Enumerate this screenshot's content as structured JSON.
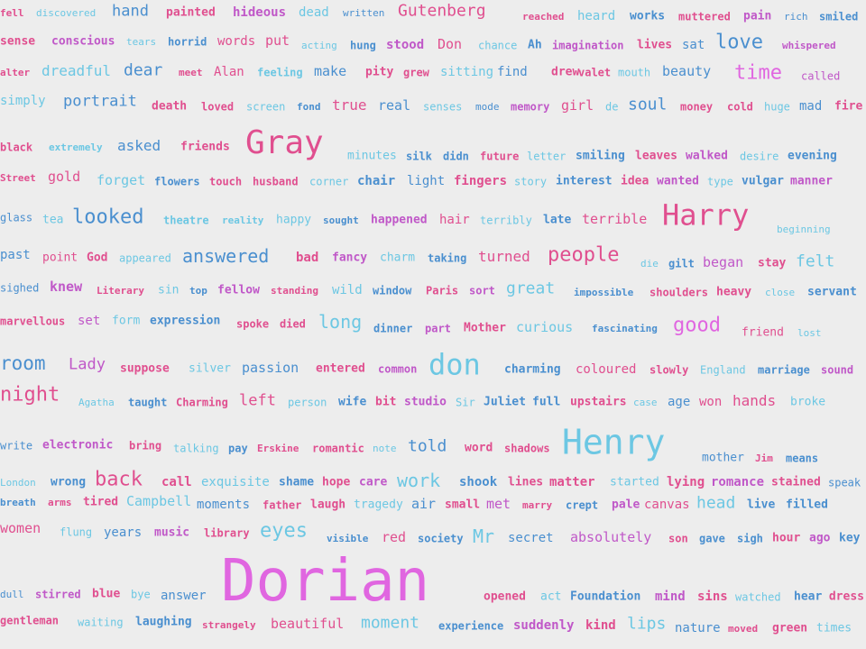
{
  "palette": {
    "magenta": "#e066e0",
    "pink": "#e04f8f",
    "sky": "#6cc7e3",
    "steel": "#4a8fcf",
    "violet": "#c058c8",
    "background": "#ededed"
  },
  "words": [
    "fell",
    "discovered",
    "hand",
    "painted",
    "hideous",
    "dead",
    "written",
    "Gutenberg",
    "reached",
    "heard",
    "works",
    "muttered",
    "pain",
    "rich",
    "smiled",
    "sense",
    "conscious",
    "tears",
    "horrid",
    "words",
    "put",
    "acting",
    "hung",
    "stood",
    "Don",
    "chance",
    "Ah",
    "imagination",
    "lives",
    "sat",
    "love",
    "whispered",
    "alter",
    "dreadful",
    "dear",
    "meet",
    "Alan",
    "feeling",
    "make",
    "pity",
    "grew",
    "sitting",
    "find",
    "drew",
    "valet",
    "mouth",
    "beauty",
    "time",
    "called",
    "simply",
    "portrait",
    "death",
    "loved",
    "screen",
    "fond",
    "true",
    "real",
    "senses",
    "mode",
    "memory",
    "girl",
    "de",
    "soul",
    "money",
    "cold",
    "huge",
    "mad",
    "fire",
    "black",
    "extremely",
    "asked",
    "friends",
    "Gray",
    "minutes",
    "silk",
    "didn",
    "future",
    "letter",
    "smiling",
    "leaves",
    "walked",
    "desire",
    "evening",
    "Street",
    "gold",
    "forget",
    "flowers",
    "touch",
    "husband",
    "corner",
    "chair",
    "light",
    "fingers",
    "story",
    "interest",
    "idea",
    "wanted",
    "type",
    "vulgar",
    "manner",
    "glass",
    "tea",
    "looked",
    "theatre",
    "reality",
    "happy",
    "sought",
    "happened",
    "hair",
    "terribly",
    "late",
    "terrible",
    "Harry",
    "beginning",
    "past",
    "point",
    "God",
    "appeared",
    "answered",
    "bad",
    "fancy",
    "charm",
    "taking",
    "turned",
    "people",
    "die",
    "gilt",
    "began",
    "stay",
    "felt",
    "sighed",
    "knew",
    "Literary",
    "sin",
    "top",
    "fellow",
    "standing",
    "wild",
    "window",
    "Paris",
    "sort",
    "great",
    "impossible",
    "shoulders",
    "heavy",
    "close",
    "servant",
    "marvellous",
    "set",
    "form",
    "expression",
    "spoke",
    "died",
    "long",
    "dinner",
    "part",
    "Mother",
    "curious",
    "fascinating",
    "good",
    "friend",
    "lost",
    "room",
    "Lady",
    "suppose",
    "silver",
    "passion",
    "entered",
    "common",
    "don",
    "charming",
    "coloured",
    "slowly",
    "England",
    "marriage",
    "sound",
    "night",
    "Agatha",
    "taught",
    "Charming",
    "left",
    "person",
    "wife",
    "bit",
    "studio",
    "Sir",
    "Juliet",
    "full",
    "upstairs",
    "case",
    "age",
    "won",
    "hands",
    "broke",
    "write",
    "electronic",
    "bring",
    "talking",
    "pay",
    "Erskine",
    "romantic",
    "note",
    "told",
    "word",
    "shadows",
    "Henry",
    "mother",
    "Jim",
    "means",
    "London",
    "wrong",
    "back",
    "call",
    "exquisite",
    "shame",
    "hope",
    "care",
    "work",
    "shook",
    "lines",
    "matter",
    "started",
    "lying",
    "romance",
    "stained",
    "speak",
    "breath",
    "arms",
    "tired",
    "Campbell",
    "moments",
    "father",
    "laugh",
    "tragedy",
    "air",
    "small",
    "met",
    "marry",
    "crept",
    "pale",
    "canvas",
    "head",
    "live",
    "filled",
    "women",
    "flung",
    "years",
    "music",
    "library",
    "eyes",
    "visible",
    "red",
    "society",
    "Mr",
    "secret",
    "absolutely",
    "son",
    "gave",
    "sigh",
    "hour",
    "ago",
    "key",
    "Dorian",
    "dull",
    "stirred",
    "blue",
    "bye",
    "answer",
    "opened",
    "act",
    "Foundation",
    "mind",
    "sins",
    "watched",
    "hear",
    "dress",
    "gentleman",
    "waiting",
    "laughing",
    "strangely",
    "beautiful",
    "moment",
    "experience",
    "suddenly",
    "kind",
    "lips",
    "nature",
    "moved",
    "green",
    "times"
  ]
}
